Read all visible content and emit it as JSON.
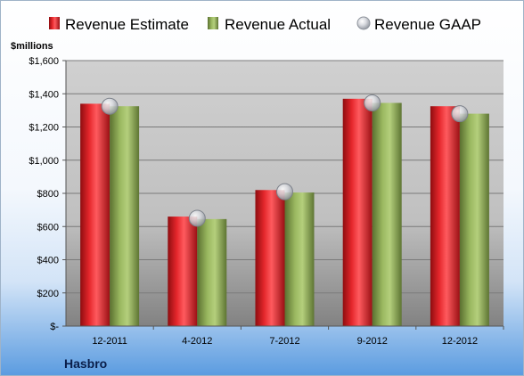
{
  "chart_data": {
    "type": "bar",
    "categories": [
      "12-2011",
      "4-2012",
      "7-2012",
      "9-2012",
      "12-2012"
    ],
    "series": [
      {
        "name": "Revenue Estimate",
        "kind": "bar",
        "color": "#c0141a",
        "values": [
          1340,
          660,
          820,
          1370,
          1325
        ]
      },
      {
        "name": "Revenue Actual",
        "kind": "bar",
        "color": "#7f9a48",
        "values": [
          1325,
          645,
          805,
          1345,
          1280
        ]
      },
      {
        "name": "Revenue GAAP",
        "kind": "marker",
        "color": "#c9ccd3",
        "values": [
          1325,
          650,
          810,
          1345,
          1280
        ]
      }
    ],
    "ylabel": "$millions",
    "ylim": [
      0,
      1600
    ],
    "yticks": [
      0,
      200,
      400,
      600,
      800,
      1000,
      1200,
      1400,
      1600
    ],
    "yticklabels": [
      "$-",
      "$200",
      "$400",
      "$600",
      "$800",
      "$1,000",
      "$1,200",
      "$1,400",
      "$1,600"
    ],
    "grid": true,
    "legend_position": "top",
    "company": "Hasbro"
  }
}
